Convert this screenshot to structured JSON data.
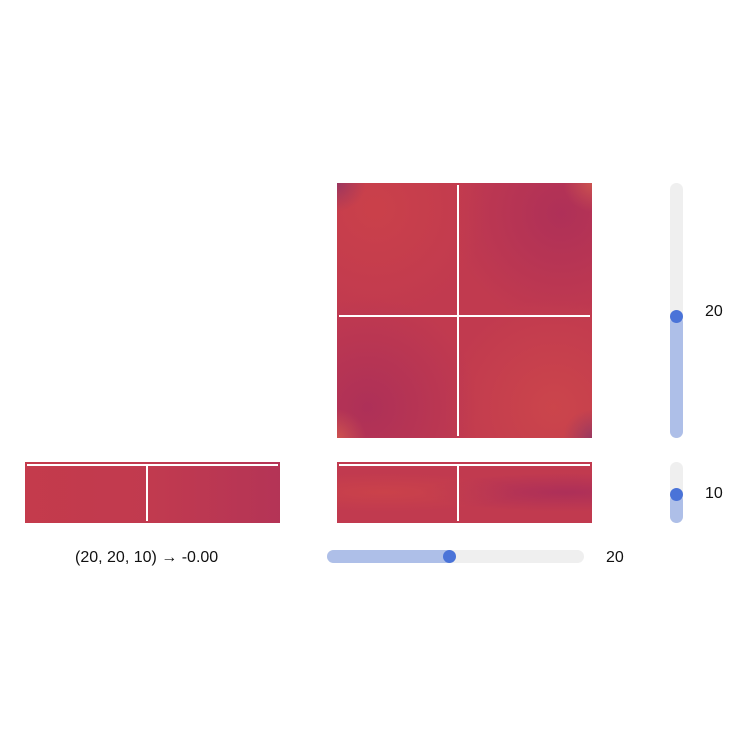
{
  "status": {
    "readout": "(20, 20, 10) → -0.00"
  },
  "sliders": {
    "vertical_top": {
      "value_label": "20",
      "value_fraction": 0.47
    },
    "vertical_bottom": {
      "value_label": "10",
      "value_fraction": 0.5
    },
    "horizontal": {
      "value_label": "20",
      "value_fraction": 0.48
    }
  },
  "colors": {
    "heatmap_base": "#c13a4f",
    "slider_track": "#efefef",
    "slider_fill": "#aebfe8",
    "slider_thumb": "#4a73d8",
    "crosshair": "#ffffff"
  }
}
